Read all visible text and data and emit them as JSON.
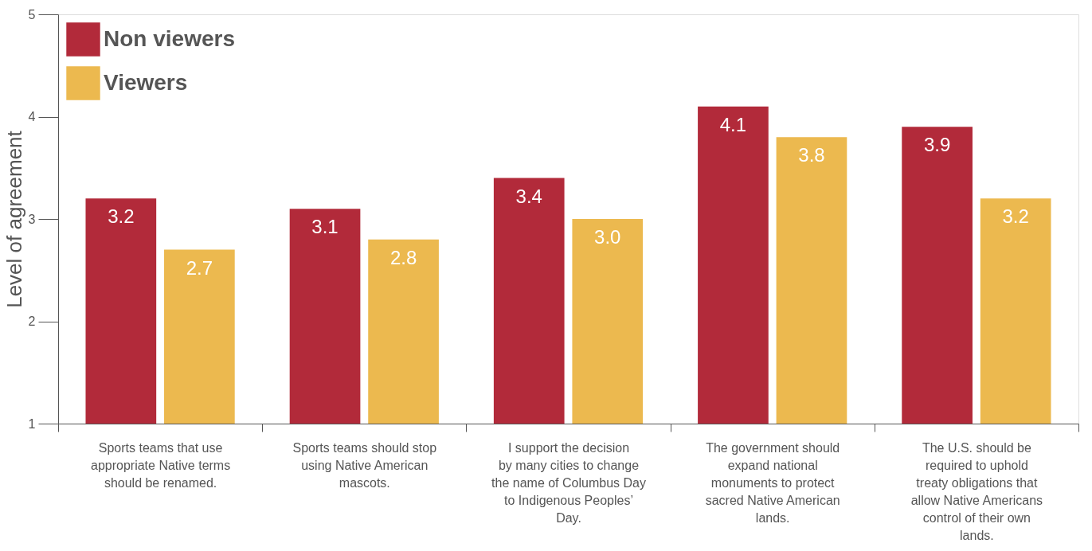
{
  "chart_data": {
    "type": "bar",
    "ylabel": "Level of agreement",
    "categories": [
      "Sports teams that use appropriate Native terms should be renamed.",
      "Sports teams should stop using Native American mascots.",
      "I support the decision by many cities to change the name of Columbus Day to Indigenous Peoples’ Day.",
      "The government should expand national monuments to protect sacred Native American lands.",
      "The U.S. should be required to uphold treaty obligations that allow Native Americans control of their own lands."
    ],
    "series": [
      {
        "name": "Non viewers",
        "color": "#b22a3a",
        "values": [
          3.2,
          3.1,
          3.4,
          4.1,
          3.9
        ],
        "value_labels": [
          "3.2",
          "3.1",
          "3.4",
          "4.1",
          "3.9"
        ]
      },
      {
        "name": "Viewers",
        "color": "#ecb94f",
        "values": [
          2.7,
          2.8,
          3.0,
          3.8,
          3.2
        ],
        "value_labels": [
          "2.7",
          "2.8",
          "3.0",
          "3.8",
          "3.2"
        ]
      }
    ],
    "ylim": [
      1,
      5
    ],
    "yticks": [
      1,
      2,
      3,
      4,
      5
    ],
    "legend": "top left",
    "grid": false
  }
}
